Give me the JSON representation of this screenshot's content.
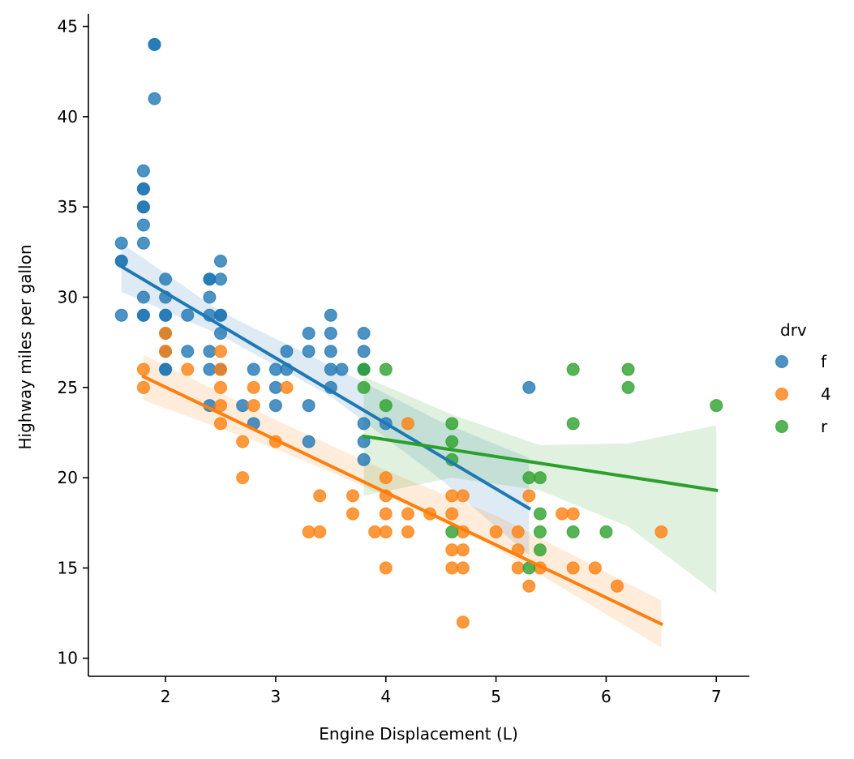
{
  "chart_data": {
    "type": "scatter",
    "title": "",
    "xlabel": "Engine Displacement (L)",
    "ylabel": "Highway miles per gallon",
    "xlim": [
      1.3,
      7.3
    ],
    "ylim": [
      9.0,
      45.7
    ],
    "xticks": [
      2,
      3,
      4,
      5,
      6,
      7
    ],
    "yticks": [
      10,
      15,
      20,
      25,
      30,
      35,
      40,
      45
    ],
    "grid": false,
    "legend": {
      "title": "drv",
      "placement": "right"
    },
    "series": [
      {
        "name": "f",
        "color": "#1f77b4",
        "points": [
          [
            1.6,
            33
          ],
          [
            1.6,
            32
          ],
          [
            1.6,
            32
          ],
          [
            1.6,
            29
          ],
          [
            1.8,
            37
          ],
          [
            1.8,
            36
          ],
          [
            1.8,
            36
          ],
          [
            1.8,
            35
          ],
          [
            1.8,
            35
          ],
          [
            1.8,
            34
          ],
          [
            1.8,
            33
          ],
          [
            1.8,
            30
          ],
          [
            1.8,
            29
          ],
          [
            1.8,
            29
          ],
          [
            1.9,
            44
          ],
          [
            1.9,
            44
          ],
          [
            1.9,
            41
          ],
          [
            2.0,
            31
          ],
          [
            2.0,
            30
          ],
          [
            2.0,
            29
          ],
          [
            2.0,
            29
          ],
          [
            2.0,
            28
          ],
          [
            2.0,
            27
          ],
          [
            2.0,
            26
          ],
          [
            2.0,
            26
          ],
          [
            2.2,
            29
          ],
          [
            2.2,
            27
          ],
          [
            2.4,
            31
          ],
          [
            2.4,
            31
          ],
          [
            2.4,
            30
          ],
          [
            2.4,
            29
          ],
          [
            2.4,
            27
          ],
          [
            2.4,
            26
          ],
          [
            2.4,
            24
          ],
          [
            2.5,
            32
          ],
          [
            2.5,
            31
          ],
          [
            2.5,
            29
          ],
          [
            2.5,
            29
          ],
          [
            2.5,
            28
          ],
          [
            2.5,
            26
          ],
          [
            2.7,
            24
          ],
          [
            2.8,
            26
          ],
          [
            2.8,
            23
          ],
          [
            3.0,
            26
          ],
          [
            3.0,
            25
          ],
          [
            3.0,
            24
          ],
          [
            3.1,
            27
          ],
          [
            3.1,
            26
          ],
          [
            3.3,
            28
          ],
          [
            3.3,
            27
          ],
          [
            3.3,
            24
          ],
          [
            3.3,
            22
          ],
          [
            3.5,
            29
          ],
          [
            3.5,
            28
          ],
          [
            3.5,
            27
          ],
          [
            3.5,
            26
          ],
          [
            3.5,
            25
          ],
          [
            3.6,
            26
          ],
          [
            3.8,
            28
          ],
          [
            3.8,
            27
          ],
          [
            3.8,
            26
          ],
          [
            3.8,
            23
          ],
          [
            3.8,
            22
          ],
          [
            3.8,
            21
          ],
          [
            4.0,
            23
          ],
          [
            5.3,
            25
          ]
        ],
        "fit": {
          "x": [
            1.6,
            5.3
          ],
          "y": [
            31.7,
            18.3
          ]
        }
      },
      {
        "name": "4",
        "color": "#ff7f0e",
        "points": [
          [
            1.8,
            26
          ],
          [
            1.8,
            25
          ],
          [
            2.0,
            28
          ],
          [
            2.0,
            27
          ],
          [
            2.2,
            26
          ],
          [
            2.5,
            27
          ],
          [
            2.5,
            26
          ],
          [
            2.5,
            25
          ],
          [
            2.5,
            24
          ],
          [
            2.5,
            23
          ],
          [
            2.7,
            22
          ],
          [
            2.7,
            20
          ],
          [
            2.8,
            25
          ],
          [
            2.8,
            24
          ],
          [
            3.0,
            22
          ],
          [
            3.1,
            25
          ],
          [
            3.3,
            17
          ],
          [
            3.4,
            19
          ],
          [
            3.4,
            17
          ],
          [
            3.7,
            19
          ],
          [
            3.7,
            18
          ],
          [
            3.9,
            17
          ],
          [
            4.0,
            20
          ],
          [
            4.0,
            19
          ],
          [
            4.0,
            18
          ],
          [
            4.0,
            17
          ],
          [
            4.0,
            15
          ],
          [
            4.2,
            23
          ],
          [
            4.2,
            18
          ],
          [
            4.2,
            17
          ],
          [
            4.4,
            18
          ],
          [
            4.6,
            19
          ],
          [
            4.6,
            18
          ],
          [
            4.6,
            16
          ],
          [
            4.6,
            15
          ],
          [
            4.7,
            19
          ],
          [
            4.7,
            17
          ],
          [
            4.7,
            16
          ],
          [
            4.7,
            15
          ],
          [
            4.7,
            12
          ],
          [
            5.0,
            17
          ],
          [
            5.2,
            17
          ],
          [
            5.2,
            16
          ],
          [
            5.2,
            15
          ],
          [
            5.3,
            19
          ],
          [
            5.3,
            14
          ],
          [
            5.4,
            15
          ],
          [
            5.6,
            18
          ],
          [
            5.7,
            18
          ],
          [
            5.7,
            15
          ],
          [
            5.9,
            15
          ],
          [
            6.1,
            14
          ],
          [
            6.5,
            17
          ]
        ],
        "fit": {
          "x": [
            1.8,
            6.5
          ],
          "y": [
            25.6,
            11.9
          ]
        }
      },
      {
        "name": "r",
        "color": "#2ca02c",
        "points": [
          [
            3.8,
            26
          ],
          [
            3.8,
            25
          ],
          [
            4.0,
            26
          ],
          [
            4.0,
            24
          ],
          [
            4.6,
            23
          ],
          [
            4.6,
            22
          ],
          [
            4.6,
            21
          ],
          [
            4.6,
            17
          ],
          [
            5.3,
            20
          ],
          [
            5.3,
            15
          ],
          [
            5.4,
            20
          ],
          [
            5.4,
            18
          ],
          [
            5.4,
            17
          ],
          [
            5.4,
            16
          ],
          [
            5.7,
            26
          ],
          [
            5.7,
            23
          ],
          [
            5.7,
            17
          ],
          [
            6.0,
            17
          ],
          [
            6.2,
            26
          ],
          [
            6.2,
            25
          ],
          [
            7.0,
            24
          ]
        ],
        "fit": {
          "x": [
            3.8,
            7.0
          ],
          "y": [
            22.3,
            19.3
          ]
        }
      }
    ],
    "confidence_bands": [
      {
        "series": "f",
        "x": [
          1.6,
          2.5,
          3.5,
          4.5,
          5.3
        ],
        "lower": [
          30.3,
          27.9,
          24.5,
          19.9,
          15.7
        ],
        "upper": [
          33.0,
          29.2,
          26.2,
          23.1,
          21.1
        ]
      },
      {
        "series": "4",
        "x": [
          1.8,
          3.0,
          4.0,
          5.0,
          6.5
        ],
        "lower": [
          24.3,
          21.6,
          19.0,
          16.1,
          10.6
        ],
        "upper": [
          26.8,
          23.2,
          20.4,
          17.9,
          13.2
        ]
      },
      {
        "series": "r",
        "x": [
          3.8,
          4.6,
          5.4,
          6.2,
          7.0
        ],
        "lower": [
          19.0,
          20.0,
          19.3,
          17.3,
          13.6
        ],
        "upper": [
          25.6,
          23.5,
          21.8,
          21.9,
          22.9
        ]
      }
    ]
  }
}
